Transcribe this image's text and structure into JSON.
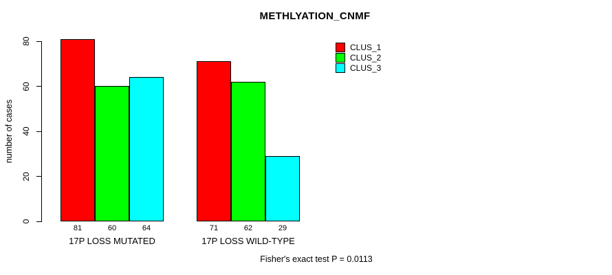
{
  "chart_data": {
    "type": "bar",
    "title": "METHLYATION_CNMF",
    "categories": [
      "17P LOSS MUTATED",
      "17P LOSS WILD-TYPE"
    ],
    "series": [
      {
        "name": "CLUS_1",
        "color": "#FF0000",
        "values": [
          81,
          71
        ]
      },
      {
        "name": "CLUS_2",
        "color": "#00FF00",
        "values": [
          60,
          62
        ]
      },
      {
        "name": "CLUS_3",
        "color": "#00FFFF",
        "values": [
          64,
          29
        ]
      }
    ],
    "xlabel": "",
    "ylabel": "number of cases",
    "ylim": [
      0,
      80
    ],
    "yticks": [
      0,
      20,
      40,
      60,
      80
    ],
    "bar_value_labels_shown": true,
    "grid": false,
    "legend": {
      "position": "top-right",
      "entries": [
        "CLUS_1",
        "CLUS_2",
        "CLUS_3"
      ]
    },
    "annotation": "Fisher's exact test P = 0.0113"
  }
}
